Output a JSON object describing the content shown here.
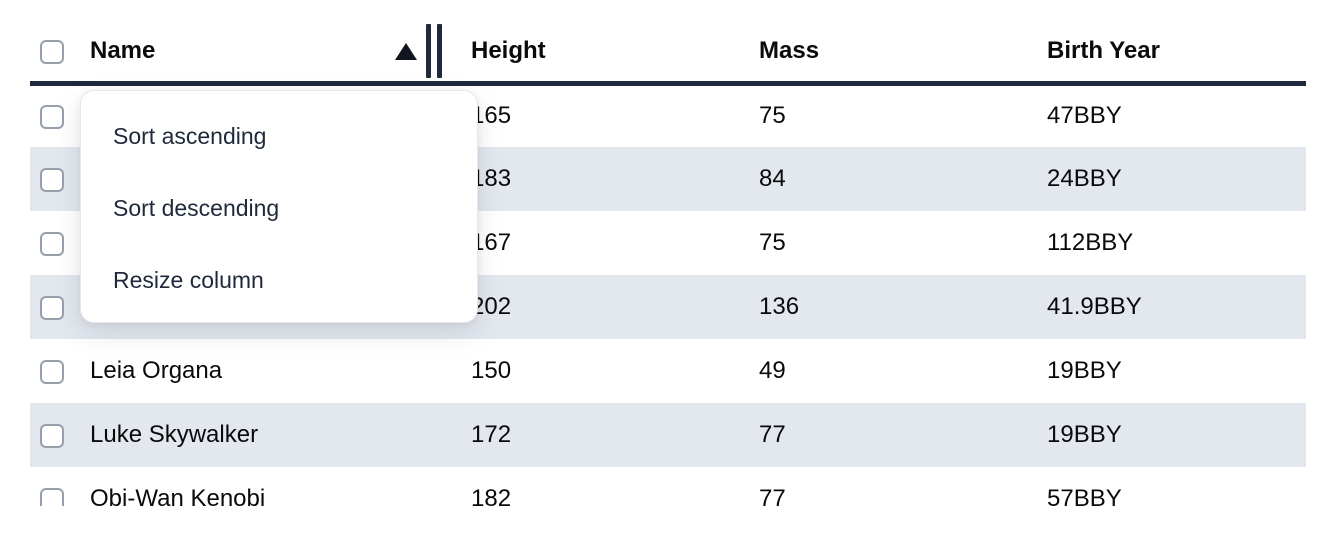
{
  "colors": {
    "header_rule": "#1e293b",
    "row_stripe": "#e3e8ef",
    "menu_text": "#1e293b",
    "checkbox_border": "#96a0ac"
  },
  "table": {
    "columns": [
      {
        "label": "Name",
        "sorted": "ascending"
      },
      {
        "label": "Height"
      },
      {
        "label": "Mass"
      },
      {
        "label": "Birth Year"
      }
    ],
    "sort_icon": "ascending-triangle",
    "rows": [
      {
        "name": "",
        "height": "165",
        "mass": "75",
        "birth_year": "47BBY"
      },
      {
        "name": "",
        "height": "183",
        "mass": "84",
        "birth_year": "24BBY"
      },
      {
        "name": "",
        "height": "167",
        "mass": "75",
        "birth_year": "112BBY"
      },
      {
        "name": "",
        "height": "202",
        "mass": "136",
        "birth_year": "41.9BBY"
      },
      {
        "name": "Leia Organa",
        "height": "150",
        "mass": "49",
        "birth_year": "19BBY"
      },
      {
        "name": "Luke Skywalker",
        "height": "172",
        "mass": "77",
        "birth_year": "19BBY"
      },
      {
        "name": "Obi-Wan Kenobi",
        "height": "182",
        "mass": "77",
        "birth_year": "57BBY"
      }
    ]
  },
  "context_menu": {
    "items": [
      {
        "label": "Sort ascending"
      },
      {
        "label": "Sort descending"
      },
      {
        "label": "Resize column"
      }
    ]
  }
}
